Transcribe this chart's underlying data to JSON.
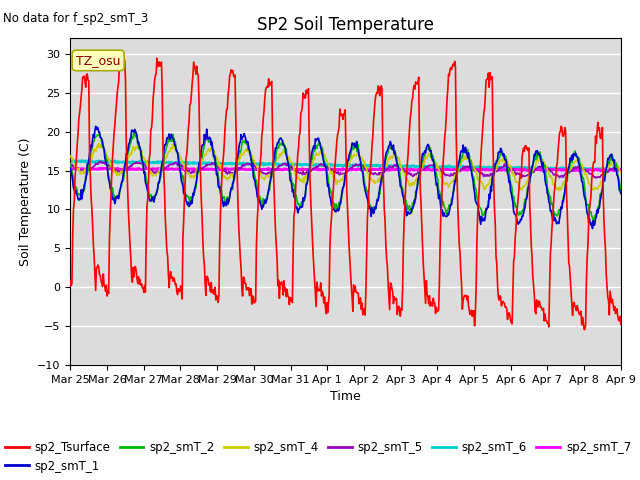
{
  "title": "SP2 Soil Temperature",
  "ylabel": "Soil Temperature (C)",
  "xlabel": "Time",
  "no_data_text": "No data for f_sp2_smT_3",
  "tz_label": "TZ_osu",
  "ylim": [
    -10,
    32
  ],
  "yticks": [
    -10,
    -5,
    0,
    5,
    10,
    15,
    20,
    25,
    30
  ],
  "xtick_labels": [
    "Mar 25",
    "Mar 26",
    "Mar 27",
    "Mar 28",
    "Mar 29",
    "Mar 30",
    "Mar 31",
    "Apr 1",
    "Apr 2",
    "Apr 3",
    "Apr 4",
    "Apr 5",
    "Apr 6",
    "Apr 7",
    "Apr 8",
    "Apr 9"
  ],
  "series": {
    "sp2_Tsurface": {
      "color": "#FF0000",
      "linewidth": 1.2
    },
    "sp2_smT_1": {
      "color": "#0000CC",
      "linewidth": 1.2
    },
    "sp2_smT_2": {
      "color": "#00BB00",
      "linewidth": 1.2
    },
    "sp2_smT_4": {
      "color": "#CCCC00",
      "linewidth": 1.2
    },
    "sp2_smT_5": {
      "color": "#9900BB",
      "linewidth": 1.2
    },
    "sp2_smT_6": {
      "color": "#00CCCC",
      "linewidth": 2.0
    },
    "sp2_smT_7": {
      "color": "#FF00FF",
      "linewidth": 2.0
    }
  },
  "background_color": "#DCDCDC",
  "fig_background": "#FFFFFF",
  "grid_color": "#FFFFFF",
  "n_points_per_day": 48,
  "n_days": 15
}
